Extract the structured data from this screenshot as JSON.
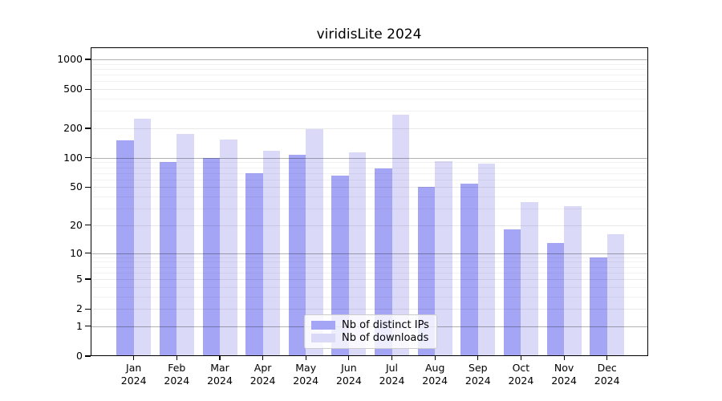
{
  "figure": {
    "title": "viridisLite 2024"
  },
  "chart_data": {
    "type": "bar",
    "title": "viridisLite 2024",
    "categories": [
      "Jan",
      "Feb",
      "Mar",
      "Apr",
      "May",
      "Jun",
      "Jul",
      "Aug",
      "Sep",
      "Oct",
      "Nov",
      "Dec"
    ],
    "year_label": "2024",
    "series": [
      {
        "name": "Nb of distinct IPs",
        "color": "#a5a5f6",
        "values": [
          150,
          91,
          99,
          70,
          107,
          66,
          78,
          50,
          54,
          18,
          13,
          9
        ]
      },
      {
        "name": "Nb of downloads",
        "color": "#dadaf8",
        "values": [
          250,
          176,
          154,
          119,
          196,
          114,
          277,
          93,
          88,
          35,
          32,
          16
        ]
      }
    ],
    "xlabel": "",
    "ylabel": "",
    "yscale": "log1p",
    "yticks": [
      0,
      1,
      2,
      5,
      10,
      20,
      50,
      100,
      200,
      500,
      1000
    ],
    "ylim": [
      0,
      1350
    ],
    "grid": true,
    "legend": {
      "position": "lower-center",
      "entries": [
        "Nb of distinct IPs",
        "Nb of downloads"
      ]
    }
  }
}
